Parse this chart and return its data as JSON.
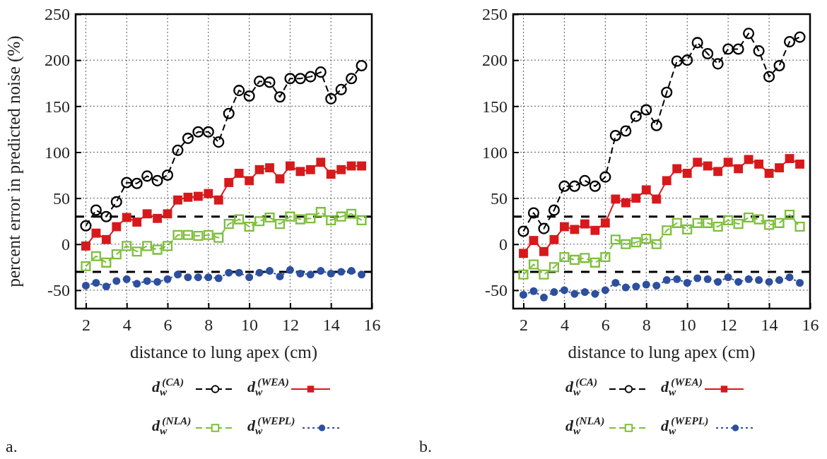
{
  "chart_data": [
    {
      "type": "line",
      "xlabel": "distance to lung apex (cm)",
      "ylabel": "percent error in predicted noise (%)",
      "x": [
        2,
        2.5,
        3,
        3.5,
        4,
        4.5,
        5,
        5.5,
        6,
        6.5,
        7,
        7.5,
        8,
        8.5,
        9,
        9.5,
        10,
        10.5,
        11,
        11.5,
        12,
        12.5,
        13,
        13.5,
        14,
        14.5,
        15,
        15.5
      ],
      "xlim": [
        1.5,
        16
      ],
      "xticks": [
        2,
        4,
        6,
        8,
        10,
        12,
        14,
        16
      ],
      "ylim": [
        -70,
        250
      ],
      "yticks": [
        -50,
        0,
        50,
        100,
        150,
        200,
        250
      ],
      "grid": true,
      "legend": "bottom",
      "annotations": [
        "a."
      ],
      "ref_lines": [
        {
          "axis": "y",
          "value": 30,
          "color": "#000000",
          "line_style": "dashed"
        },
        {
          "axis": "y",
          "value": -30,
          "color": "#000000",
          "line_style": "dashed"
        }
      ],
      "series": [
        {
          "name": "d$_{w}$$^{(CA)}$",
          "color": "#000000",
          "marker": "circle",
          "line_style": "dashed",
          "values": [
            20,
            37,
            30,
            46,
            67,
            66,
            74,
            69,
            75,
            102,
            115,
            122,
            122,
            111,
            142,
            167,
            161,
            177,
            176,
            160,
            180,
            180,
            182,
            187,
            158,
            168,
            180,
            194
          ]
        },
        {
          "name": "d$_{w}$$^{(WEA)}$",
          "color": "#d7191c",
          "marker": "square",
          "line_style": "solid",
          "values": [
            -2,
            12,
            5,
            19,
            29,
            24,
            33,
            28,
            33,
            48,
            51,
            52,
            55,
            48,
            67,
            77,
            69,
            81,
            83,
            71,
            85,
            79,
            81,
            89,
            76,
            81,
            85,
            85
          ]
        },
        {
          "name": "d$_{w}$$^{(NLA)}$",
          "color": "#7dbf3a",
          "marker": "square",
          "line_style": "dashed",
          "values": [
            -24,
            -13,
            -20,
            -11,
            -2,
            -8,
            -2,
            -6,
            -2,
            10,
            10,
            9,
            10,
            7,
            22,
            27,
            19,
            25,
            29,
            22,
            30,
            27,
            28,
            35,
            26,
            30,
            33,
            26
          ]
        },
        {
          "name": "d$_{w}$$^{(WEPL)}$",
          "color": "#2d4f9e",
          "marker": "circle",
          "line_style": "dotted",
          "values": [
            -45,
            -42,
            -46,
            -40,
            -38,
            -43,
            -40,
            -41,
            -38,
            -33,
            -36,
            -36,
            -36,
            -37,
            -31,
            -31,
            -36,
            -31,
            -29,
            -35,
            -28,
            -32,
            -33,
            -29,
            -32,
            -30,
            -29,
            -33
          ]
        }
      ]
    },
    {
      "type": "line",
      "xlabel": "distance to lung apex (cm)",
      "x": [
        2,
        2.5,
        3,
        3.5,
        4,
        4.5,
        5,
        5.5,
        6,
        6.5,
        7,
        7.5,
        8,
        8.5,
        9,
        9.5,
        10,
        10.5,
        11,
        11.5,
        12,
        12.5,
        13,
        13.5,
        14,
        14.5,
        15,
        15.5
      ],
      "xlim": [
        1.5,
        16
      ],
      "xticks": [
        2,
        4,
        6,
        8,
        10,
        12,
        14,
        16
      ],
      "ylim": [
        -70,
        250
      ],
      "yticks": [
        -50,
        0,
        50,
        100,
        150,
        200,
        250
      ],
      "grid": true,
      "legend": "bottom",
      "annotations": [
        "b."
      ],
      "ref_lines": [
        {
          "axis": "y",
          "value": 30,
          "color": "#000000",
          "line_style": "dashed"
        },
        {
          "axis": "y",
          "value": -30,
          "color": "#000000",
          "line_style": "dashed"
        }
      ],
      "series": [
        {
          "name": "d$_{w}$$^{(CA)}$",
          "color": "#000000",
          "marker": "circle",
          "line_style": "dashed",
          "values": [
            14,
            34,
            17,
            37,
            63,
            63,
            69,
            63,
            73,
            118,
            123,
            139,
            146,
            129,
            165,
            199,
            200,
            219,
            207,
            196,
            212,
            212,
            229,
            210,
            182,
            194,
            220,
            225
          ]
        },
        {
          "name": "d$_{w}$$^{(WEA)}$",
          "color": "#d7191c",
          "marker": "square",
          "line_style": "solid",
          "values": [
            -10,
            4,
            -8,
            5,
            19,
            16,
            22,
            15,
            23,
            49,
            45,
            50,
            59,
            49,
            69,
            82,
            77,
            89,
            85,
            79,
            89,
            82,
            92,
            87,
            77,
            83,
            93,
            87
          ]
        },
        {
          "name": "d$_{w}$$^{(NLA)}$",
          "color": "#7dbf3a",
          "marker": "square",
          "line_style": "dashed",
          "values": [
            -33,
            -22,
            -33,
            -25,
            -14,
            -17,
            -15,
            -20,
            -14,
            5,
            0,
            2,
            6,
            0,
            15,
            23,
            16,
            23,
            23,
            19,
            26,
            22,
            29,
            27,
            21,
            23,
            32,
            19
          ]
        },
        {
          "name": "d$_{w}$$^{(WEPL)}$",
          "color": "#2d4f9e",
          "marker": "circle",
          "line_style": "dotted",
          "values": [
            -55,
            -51,
            -58,
            -52,
            -50,
            -54,
            -52,
            -54,
            -50,
            -42,
            -47,
            -46,
            -44,
            -45,
            -39,
            -38,
            -42,
            -37,
            -38,
            -41,
            -36,
            -41,
            -38,
            -39,
            -41,
            -39,
            -36,
            -42
          ]
        }
      ]
    }
  ]
}
